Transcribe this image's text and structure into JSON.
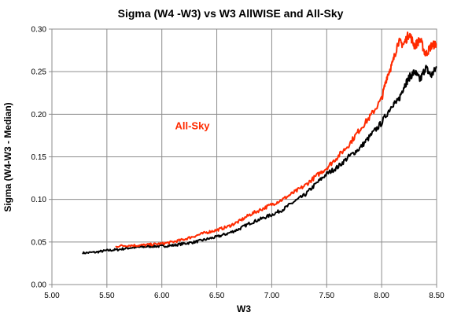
{
  "chart_data": {
    "type": "line",
    "title": "Sigma (W4 -W3) vs W3 AllWISE and All-Sky",
    "xlabel": "W3",
    "ylabel": "Sigma (W4-W3 - Median)",
    "xlim": [
      5.0,
      8.5
    ],
    "ylim": [
      0.0,
      0.3
    ],
    "x_ticks": [
      "5.00",
      "5.50",
      "6.00",
      "6.50",
      "7.00",
      "7.50",
      "8.00",
      "8.50"
    ],
    "y_ticks": [
      "0.00",
      "0.05",
      "0.10",
      "0.15",
      "0.20",
      "0.25",
      "0.30"
    ],
    "grid": true,
    "annotations": [
      {
        "text": "All-Sky",
        "x": 6.12,
        "y": 0.187,
        "color": "#ff2a00"
      }
    ],
    "series": [
      {
        "color": "#000000",
        "x": [
          5.28,
          5.4,
          5.5,
          5.6,
          5.7,
          5.8,
          5.9,
          6.0,
          6.1,
          6.2,
          6.3,
          6.4,
          6.5,
          6.6,
          6.7,
          6.8,
          6.9,
          7.0,
          7.1,
          7.2,
          7.3,
          7.4,
          7.5,
          7.6,
          7.7,
          7.8,
          7.9,
          8.0,
          8.1,
          8.15,
          8.2,
          8.25,
          8.3,
          8.35,
          8.4,
          8.45,
          8.5
        ],
        "values": [
          0.037,
          0.038,
          0.04,
          0.041,
          0.043,
          0.044,
          0.045,
          0.045,
          0.046,
          0.048,
          0.05,
          0.053,
          0.056,
          0.06,
          0.065,
          0.072,
          0.077,
          0.082,
          0.088,
          0.097,
          0.105,
          0.118,
          0.13,
          0.138,
          0.15,
          0.16,
          0.175,
          0.19,
          0.212,
          0.215,
          0.232,
          0.243,
          0.25,
          0.24,
          0.255,
          0.245,
          0.255
        ]
      },
      {
        "color": "#ff2a00",
        "x": [
          5.58,
          5.7,
          5.8,
          5.9,
          6.0,
          6.1,
          6.2,
          6.3,
          6.4,
          6.5,
          6.6,
          6.7,
          6.8,
          6.9,
          7.0,
          7.1,
          7.2,
          7.3,
          7.4,
          7.5,
          7.6,
          7.7,
          7.8,
          7.9,
          8.0,
          8.05,
          8.1,
          8.15,
          8.2,
          8.25,
          8.3,
          8.35,
          8.4,
          8.45,
          8.5
        ],
        "values": [
          0.045,
          0.046,
          0.046,
          0.047,
          0.048,
          0.05,
          0.053,
          0.057,
          0.061,
          0.064,
          0.068,
          0.074,
          0.082,
          0.088,
          0.094,
          0.1,
          0.108,
          0.116,
          0.127,
          0.137,
          0.15,
          0.164,
          0.182,
          0.198,
          0.218,
          0.245,
          0.26,
          0.285,
          0.282,
          0.295,
          0.28,
          0.288,
          0.27,
          0.28,
          0.283
        ]
      }
    ]
  }
}
